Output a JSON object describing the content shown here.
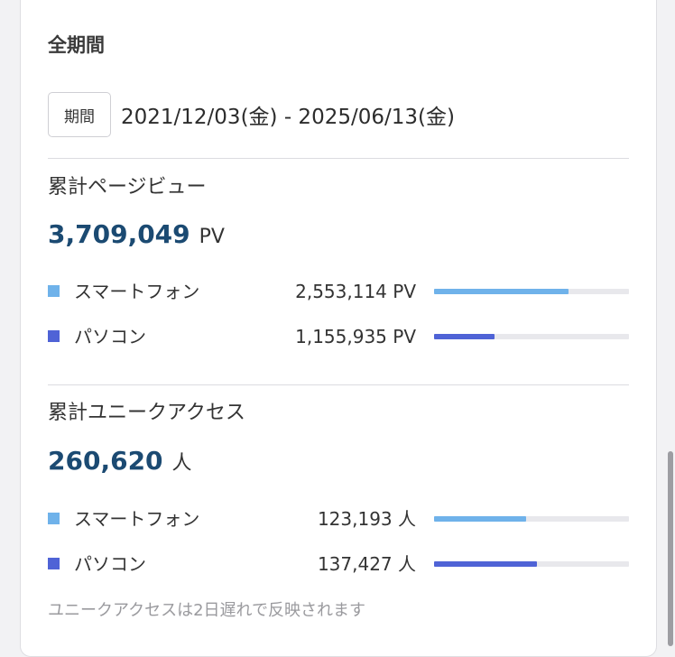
{
  "section": {
    "title": "全期間"
  },
  "period": {
    "badge_label": "期間",
    "range": "2021/12/03(金) - 2025/06/13(金)"
  },
  "pageviews": {
    "title": "累計ページビュー",
    "total": "3,709,049",
    "unit": "PV",
    "rows": [
      {
        "label": "スマートフォン",
        "value": "2,553,114 PV",
        "share": 0.688,
        "color": "#6fb2ea"
      },
      {
        "label": "パソコン",
        "value": "1,155,935 PV",
        "share": 0.312,
        "color": "#4f63d6"
      }
    ]
  },
  "unique_access": {
    "title": "累計ユニークアクセス",
    "total": "260,620",
    "unit": "人",
    "rows": [
      {
        "label": "スマートフォン",
        "value": "123,193 人",
        "share": 0.473,
        "color": "#6fb2ea"
      },
      {
        "label": "パソコン",
        "value": "137,427 人",
        "share": 0.527,
        "color": "#4f63d6"
      }
    ]
  },
  "note": "ユニークアクセスは2日遅れで反映されます"
}
